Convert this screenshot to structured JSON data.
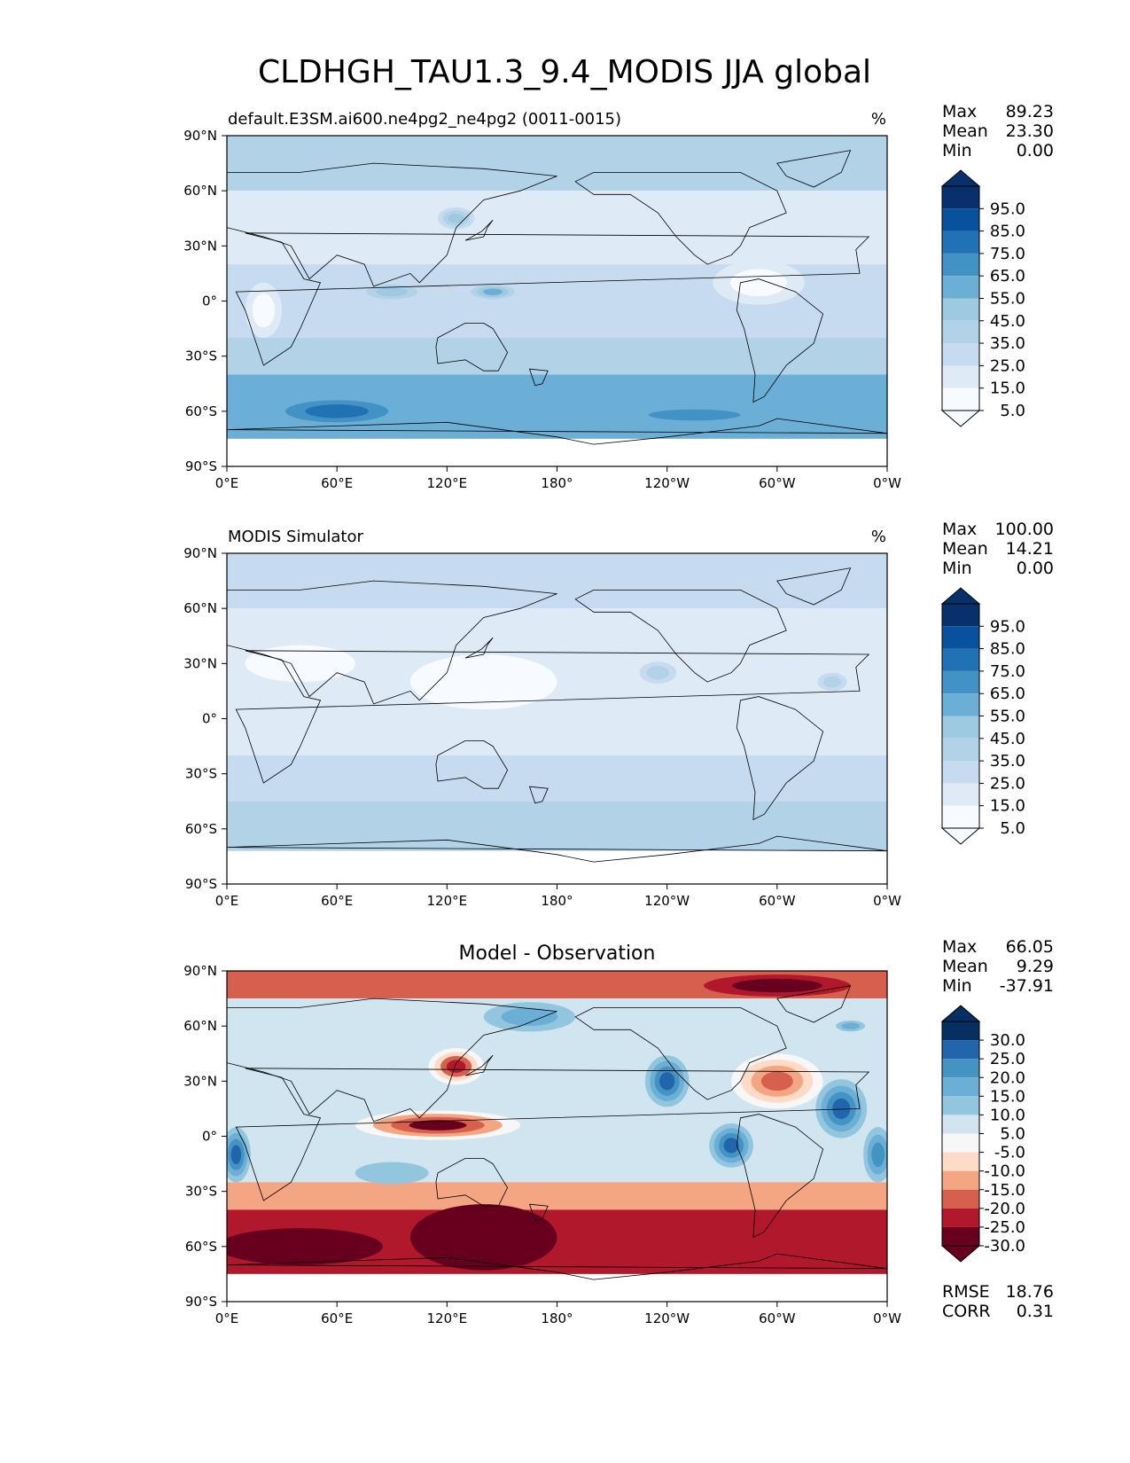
{
  "figure": {
    "title": "CLDHGH_TAU1.3_9.4_MODIS JJA global"
  },
  "chart_data": [
    {
      "type": "heatmap",
      "left_title": "default.E3SM.ai600.ne4pg2_ne4pg2 (0011-0015)",
      "center_title": "",
      "units": "%",
      "stats": [
        {
          "label": "Max",
          "value": "89.23"
        },
        {
          "label": "Mean",
          "value": "23.30"
        },
        {
          "label": "Min",
          "value": "0.00"
        }
      ],
      "colorbar": {
        "ticks": [
          "95.0",
          "85.0",
          "75.0",
          "65.0",
          "55.0",
          "45.0",
          "35.0",
          "25.0",
          "15.0",
          "5.0"
        ],
        "colors": [
          "#08306b",
          "#08519c",
          "#2171b5",
          "#4292c6",
          "#6baed6",
          "#9ecae1",
          "#b2d2e8",
          "#c6dbef",
          "#deebf7",
          "#f7fbff"
        ],
        "extend": "both"
      },
      "xticks": [
        "0°E",
        "60°E",
        "120°E",
        "180°",
        "120°W",
        "60°W",
        "0°W"
      ],
      "yticks": [
        "90°N",
        "60°N",
        "30°N",
        "0°",
        "30°S",
        "60°S",
        "90°S"
      ],
      "xlim": [
        0,
        360
      ],
      "ylim": [
        -90,
        90
      ],
      "field_zones": [
        {
          "lat": [
            60,
            90
          ],
          "level": 3
        },
        {
          "lat": [
            20,
            60
          ],
          "level": 1
        },
        {
          "lat": [
            -20,
            20
          ],
          "level": 2
        },
        {
          "lat": [
            -40,
            -20
          ],
          "level": 3
        },
        {
          "lat": [
            -75,
            -40
          ],
          "level": 5
        }
      ],
      "field_blobs": [
        {
          "lon": 90,
          "lat": 5,
          "rlon": 14,
          "rlat": 4,
          "level": 4
        },
        {
          "lon": 145,
          "lat": 5,
          "rlon": 12,
          "rlat": 4,
          "level": 5
        },
        {
          "lon": 125,
          "lat": 45,
          "rlon": 10,
          "rlat": 6,
          "level": 4
        },
        {
          "lon": 60,
          "lat": -60,
          "rlon": 28,
          "rlat": 6,
          "level": 7
        },
        {
          "lon": 255,
          "lat": -62,
          "rlon": 25,
          "rlat": 3,
          "level": 6
        },
        {
          "lon": 290,
          "lat": 10,
          "rlon": 25,
          "rlat": 12,
          "level": 0
        },
        {
          "lon": 20,
          "lat": -5,
          "rlon": 10,
          "rlat": 15,
          "level": 0
        }
      ],
      "no_data_below_lat": -75
    },
    {
      "type": "heatmap",
      "left_title": "MODIS Simulator",
      "center_title": "",
      "units": "%",
      "stats": [
        {
          "label": "Max",
          "value": "100.00"
        },
        {
          "label": "Mean",
          "value": "14.21"
        },
        {
          "label": "Min",
          "value": "0.00"
        }
      ],
      "colorbar": {
        "ticks": [
          "95.0",
          "85.0",
          "75.0",
          "65.0",
          "55.0",
          "45.0",
          "35.0",
          "25.0",
          "15.0",
          "5.0"
        ],
        "colors": [
          "#08306b",
          "#08519c",
          "#2171b5",
          "#4292c6",
          "#6baed6",
          "#9ecae1",
          "#b2d2e8",
          "#c6dbef",
          "#deebf7",
          "#f7fbff"
        ],
        "extend": "both"
      },
      "xticks": [
        "0°E",
        "60°E",
        "120°E",
        "180°",
        "120°W",
        "60°W",
        "0°W"
      ],
      "yticks": [
        "90°N",
        "60°N",
        "30°N",
        "0°",
        "30°S",
        "60°S",
        "90°S"
      ],
      "xlim": [
        0,
        360
      ],
      "ylim": [
        -90,
        90
      ],
      "field_zones": [
        {
          "lat": [
            60,
            90
          ],
          "level": 2
        },
        {
          "lat": [
            20,
            60
          ],
          "level": 1
        },
        {
          "lat": [
            -20,
            20
          ],
          "level": 1
        },
        {
          "lat": [
            -45,
            -20
          ],
          "level": 2
        },
        {
          "lat": [
            -75,
            -45
          ],
          "level": 3
        }
      ],
      "field_blobs": [
        {
          "lon": 235,
          "lat": 25,
          "rlon": 10,
          "rlat": 6,
          "level": 3
        },
        {
          "lon": 330,
          "lat": 20,
          "rlon": 8,
          "rlat": 5,
          "level": 3
        },
        {
          "lon": 140,
          "lat": 20,
          "rlon": 40,
          "rlat": 15,
          "level": 0
        },
        {
          "lon": 40,
          "lat": 30,
          "rlon": 30,
          "rlat": 10,
          "level": 0
        }
      ],
      "no_data_below_lat": -72
    },
    {
      "type": "heatmap",
      "left_title": "",
      "center_title": "Model - Observation",
      "units": "",
      "stats": [
        {
          "label": "Max",
          "value": "66.05"
        },
        {
          "label": "Mean",
          "value": "9.29"
        },
        {
          "label": "Min",
          "value": "-37.91"
        }
      ],
      "bottom_stats": [
        {
          "label": "RMSE",
          "value": "18.76"
        },
        {
          "label": "CORR",
          "value": "0.31"
        }
      ],
      "colorbar": {
        "ticks": [
          "30.0",
          "25.0",
          "20.0",
          "15.0",
          "10.0",
          "5.0",
          "-5.0",
          "-10.0",
          "-15.0",
          "-20.0",
          "-25.0",
          "-30.0"
        ],
        "colors": [
          "#053061",
          "#2166ac",
          "#4393c3",
          "#6baed6",
          "#92c5de",
          "#d1e5f0",
          "#f7f7f7",
          "#fddbc7",
          "#f4a582",
          "#d6604d",
          "#b2182b",
          "#67001f"
        ],
        "extend": "both"
      },
      "xticks": [
        "0°E",
        "60°E",
        "120°E",
        "180°",
        "120°W",
        "60°W",
        "0°W"
      ],
      "yticks": [
        "90°N",
        "60°N",
        "30°N",
        "0°",
        "30°S",
        "60°S",
        "90°S"
      ],
      "xlim": [
        0,
        360
      ],
      "ylim": [
        -90,
        90
      ],
      "field_zones": [
        {
          "lat": [
            75,
            90
          ],
          "level": 2
        },
        {
          "lat": [
            50,
            75
          ],
          "level": 6
        },
        {
          "lat": [
            -25,
            50
          ],
          "level": 6
        },
        {
          "lat": [
            -40,
            -25
          ],
          "level": 3
        },
        {
          "lat": [
            -75,
            -40
          ],
          "level": 1
        }
      ],
      "field_blobs": [
        {
          "lon": 40,
          "lat": -60,
          "rlon": 45,
          "rlat": 10,
          "level": 0
        },
        {
          "lon": 140,
          "lat": -55,
          "rlon": 40,
          "rlat": 18,
          "level": 0
        },
        {
          "lon": 115,
          "lat": 6,
          "rlon": 45,
          "rlat": 8,
          "level": 0
        },
        {
          "lon": 125,
          "lat": 38,
          "rlon": 15,
          "rlat": 10,
          "level": 1
        },
        {
          "lon": 300,
          "lat": 82,
          "rlon": 40,
          "rlat": 6,
          "level": 0
        },
        {
          "lon": 300,
          "lat": 30,
          "rlon": 25,
          "rlat": 15,
          "level": 2
        },
        {
          "lon": 240,
          "lat": 30,
          "rlon": 12,
          "rlat": 14,
          "level": 10
        },
        {
          "lon": 275,
          "lat": -5,
          "rlon": 12,
          "rlat": 12,
          "level": 10
        },
        {
          "lon": 335,
          "lat": 15,
          "rlon": 14,
          "rlat": 16,
          "level": 10
        },
        {
          "lon": 5,
          "lat": -10,
          "rlon": 8,
          "rlat": 15,
          "level": 10
        },
        {
          "lon": 355,
          "lat": -10,
          "rlon": 8,
          "rlat": 15,
          "level": 9
        },
        {
          "lon": 165,
          "lat": 65,
          "rlon": 25,
          "rlat": 8,
          "level": 8
        },
        {
          "lon": 90,
          "lat": -20,
          "rlon": 20,
          "rlat": 6,
          "level": 7
        },
        {
          "lon": 340,
          "lat": 60,
          "rlon": 8,
          "rlat": 3,
          "level": 8
        }
      ],
      "no_data_below_lat": -75
    }
  ]
}
